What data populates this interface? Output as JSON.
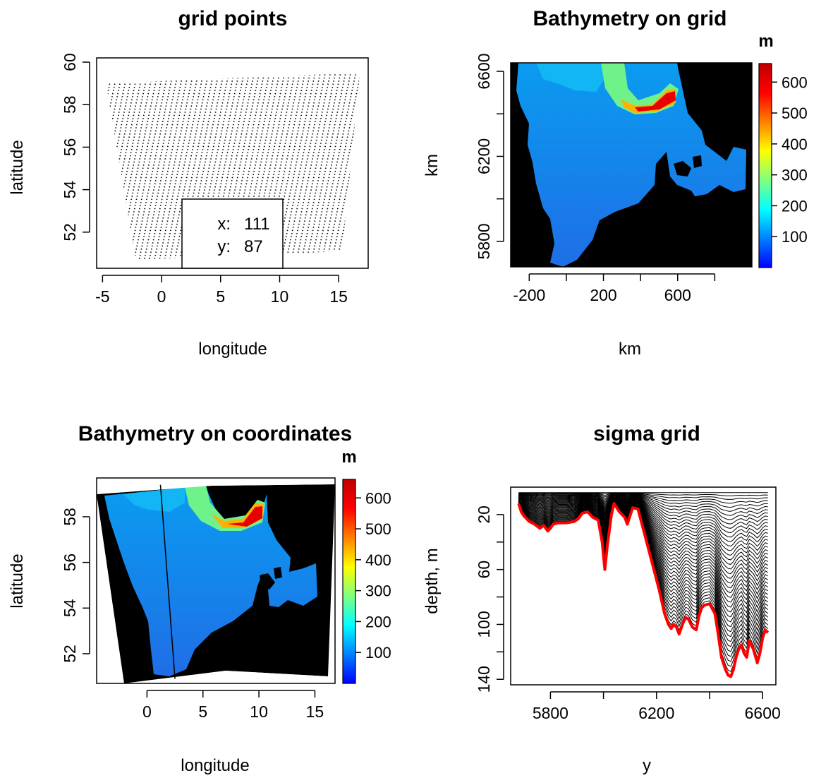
{
  "chart_data": [
    {
      "type": "scatter",
      "title": "grid points",
      "xlabel": "longitude",
      "ylabel": "latitude",
      "xlim": [
        -5.5,
        17.5
      ],
      "ylim": [
        50.3,
        60.2
      ],
      "xticks": [
        -5,
        0,
        5,
        10,
        15
      ],
      "xtick_labels": [
        "-5",
        "0",
        "5",
        "10",
        "15"
      ],
      "yticks": [
        52,
        54,
        56,
        58,
        60
      ],
      "ytick_labels": [
        "52",
        "54",
        "56",
        "58",
        "60"
      ],
      "grid_size": {
        "x": 111,
        "y": 87
      },
      "domain_corners": [
        [
          -4.7,
          59.0
        ],
        [
          16.8,
          59.5
        ],
        [
          15.3,
          51.1
        ],
        [
          -2.2,
          50.7
        ]
      ],
      "legend": {
        "position": "bottom-center",
        "x_label": "x:",
        "x_value": "111",
        "y_label": "y:",
        "y_value": "87"
      },
      "grid": false
    },
    {
      "type": "heatmap",
      "title": "Bathymetry on grid",
      "xlabel": "km",
      "ylabel": "km",
      "xlim": [
        -300,
        1000
      ],
      "ylim": [
        5680,
        6640
      ],
      "xticks": [
        -200,
        0,
        200,
        400,
        600,
        800
      ],
      "xtick_labels": [
        "-200",
        "",
        "200",
        "",
        "600",
        ""
      ],
      "yticks": [
        5800,
        6000,
        6200,
        6400,
        6600
      ],
      "ytick_labels": [
        "5800",
        "",
        "6200",
        "",
        "6600"
      ],
      "colorbar": {
        "title": "m",
        "ticks": [
          100,
          200,
          300,
          400,
          500,
          600
        ],
        "range": [
          0,
          660
        ]
      },
      "grid": false
    },
    {
      "type": "heatmap",
      "title": "Bathymetry on coordinates",
      "xlabel": "longitude",
      "ylabel": "latitude",
      "xlim": [
        -4.5,
        16.8
      ],
      "ylim": [
        50.7,
        59.7
      ],
      "xticks": [
        0,
        5,
        10,
        15
      ],
      "xtick_labels": [
        "0",
        "5",
        "10",
        "15"
      ],
      "yticks": [
        52,
        54,
        56,
        58
      ],
      "ytick_labels": [
        "52",
        "54",
        "56",
        "58"
      ],
      "section_line": [
        [
          1.2,
          59.4
        ],
        [
          2.5,
          50.9
        ]
      ],
      "colorbar": {
        "title": "m",
        "ticks": [
          100,
          200,
          300,
          400,
          500,
          600
        ],
        "range": [
          0,
          660
        ],
        "label": "depth, m"
      },
      "grid": false
    },
    {
      "type": "line",
      "title": "sigma grid",
      "xlabel": "y",
      "ylabel": "",
      "xlim": [
        5650,
        6650
      ],
      "ylim": [
        144,
        0
      ],
      "xticks": [
        5800,
        6000,
        6200,
        6400,
        6600
      ],
      "xtick_labels": [
        "5800",
        "",
        "6200",
        "",
        "6600"
      ],
      "yticks": [
        20,
        40,
        60,
        80,
        100,
        120,
        140
      ],
      "ytick_labels": [
        "20",
        "",
        "60",
        "",
        "100",
        "",
        "140"
      ],
      "sigma_levels": 40,
      "surface_depth": 4,
      "bottom": {
        "x": [
          5680,
          5690,
          5700,
          5720,
          5740,
          5760,
          5775,
          5790,
          5800,
          5810,
          5830,
          5860,
          5890,
          5905,
          5920,
          5940,
          5960,
          5980,
          5995,
          6005,
          6015,
          6030,
          6040,
          6060,
          6080,
          6090,
          6110,
          6130,
          6160,
          6190,
          6210,
          6230,
          6245,
          6255,
          6265,
          6275,
          6285,
          6300,
          6310,
          6320,
          6335,
          6350,
          6360,
          6370,
          6380,
          6400,
          6420,
          6430,
          6445,
          6460,
          6470,
          6480,
          6490,
          6500,
          6510,
          6520,
          6530,
          6540,
          6550,
          6565,
          6580,
          6590,
          6600,
          6610,
          6620
        ],
        "y": [
          12,
          18,
          21,
          25,
          27,
          30,
          28,
          32,
          30,
          27,
          26,
          26,
          25,
          23,
          19,
          18,
          22,
          24,
          40,
          60,
          42,
          20,
          12,
          18,
          22,
          27,
          15,
          16,
          38,
          60,
          75,
          92,
          100,
          103,
          100,
          102,
          107,
          99,
          95,
          96,
          102,
          104,
          94,
          88,
          86,
          85,
          92,
          104,
          124,
          133,
          137,
          138,
          133,
          124,
          118,
          115,
          121,
          124,
          112,
          118,
          128,
          121,
          110,
          104,
          106
        ]
      },
      "bottom_color": "#ff0000",
      "grid": false
    }
  ],
  "colormap": [
    "#0000ff",
    "#0080ff",
    "#00ffff",
    "#80ff80",
    "#ffff00",
    "#ff8000",
    "#ff0000",
    "#c00000"
  ]
}
